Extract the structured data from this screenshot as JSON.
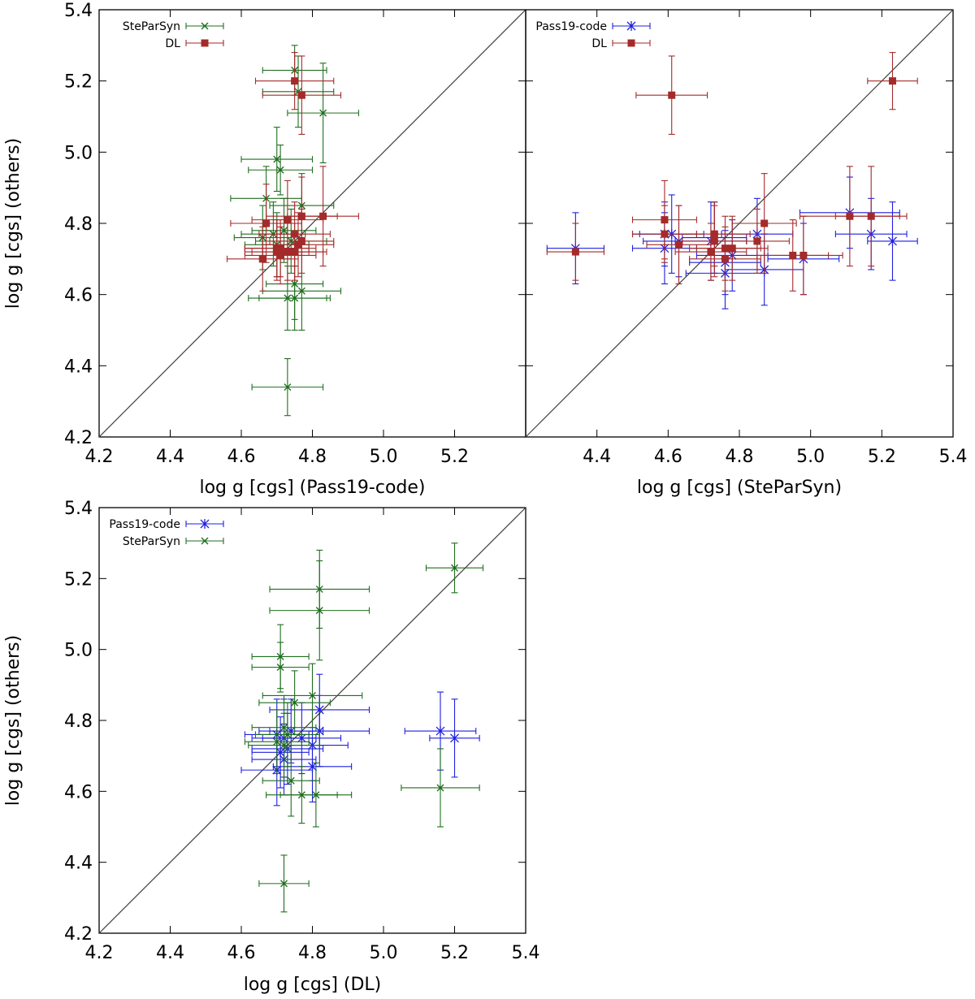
{
  "colors": {
    "pass19": "#1f1fe0",
    "steparsyn": "#1e6e1e",
    "dl": "#a52a2a",
    "axis": "#000000",
    "identity": "#404040"
  },
  "chart_data": [
    {
      "type": "scatter",
      "panel": "top-left",
      "xlabel": "log g [cgs] (Pass19-code)",
      "ylabel": "log g [cgs] (others)",
      "xlim": [
        4.2,
        5.4
      ],
      "ylim": [
        4.2,
        5.4
      ],
      "xticks": [
        4.2,
        4.4,
        4.6,
        4.8,
        5.0,
        5.2
      ],
      "yticks": [
        4.2,
        4.4,
        4.6,
        4.8,
        5.0,
        5.2,
        5.4
      ],
      "xtick_labels": [
        "4.2",
        "4.4",
        "4.6",
        "4.8",
        "5.0",
        "5.2"
      ],
      "ytick_labels": [
        "4.2",
        "4.4",
        "4.6",
        "4.8",
        "5.0",
        "5.2",
        "5.4"
      ],
      "identity_line": true,
      "legend_position": "top-left",
      "series": [
        {
          "name": "SteParSyn",
          "marker": "x",
          "color": "#1e6e1e",
          "points": [
            {
              "x": 4.75,
              "y": 5.23,
              "xerr": 0.09,
              "yerr": 0.07
            },
            {
              "x": 4.76,
              "y": 5.17,
              "xerr": 0.1,
              "yerr": 0.1
            },
            {
              "x": 4.83,
              "y": 5.11,
              "xerr": 0.1,
              "yerr": 0.14
            },
            {
              "x": 4.7,
              "y": 4.98,
              "xerr": 0.1,
              "yerr": 0.09
            },
            {
              "x": 4.71,
              "y": 4.95,
              "xerr": 0.09,
              "yerr": 0.07
            },
            {
              "x": 4.67,
              "y": 4.87,
              "xerr": 0.1,
              "yerr": 0.09
            },
            {
              "x": 4.77,
              "y": 4.85,
              "xerr": 0.09,
              "yerr": 0.09
            },
            {
              "x": 4.69,
              "y": 4.77,
              "xerr": 0.09,
              "yerr": 0.09
            },
            {
              "x": 4.72,
              "y": 4.78,
              "xerr": 0.09,
              "yerr": 0.09
            },
            {
              "x": 4.66,
              "y": 4.76,
              "xerr": 0.08,
              "yerr": 0.09
            },
            {
              "x": 4.74,
              "y": 4.75,
              "xerr": 0.1,
              "yerr": 0.09
            },
            {
              "x": 4.7,
              "y": 4.74,
              "xerr": 0.09,
              "yerr": 0.09
            },
            {
              "x": 4.75,
              "y": 4.63,
              "xerr": 0.08,
              "yerr": 0.1
            },
            {
              "x": 4.77,
              "y": 4.61,
              "xerr": 0.11,
              "yerr": 0.11
            },
            {
              "x": 4.73,
              "y": 4.59,
              "xerr": 0.11,
              "yerr": 0.09
            },
            {
              "x": 4.75,
              "y": 4.59,
              "xerr": 0.1,
              "yerr": 0.09
            },
            {
              "x": 4.73,
              "y": 4.34,
              "xerr": 0.1,
              "yerr": 0.08
            }
          ]
        },
        {
          "name": "DL",
          "marker": "square",
          "color": "#a52a2a",
          "points": [
            {
              "x": 4.75,
              "y": 5.2,
              "xerr": 0.11,
              "yerr": 0.08
            },
            {
              "x": 4.77,
              "y": 5.16,
              "xerr": 0.11,
              "yerr": 0.11
            },
            {
              "x": 4.83,
              "y": 4.82,
              "xerr": 0.1,
              "yerr": 0.14
            },
            {
              "x": 4.77,
              "y": 4.82,
              "xerr": 0.1,
              "yerr": 0.11
            },
            {
              "x": 4.73,
              "y": 4.81,
              "xerr": 0.1,
              "yerr": 0.11
            },
            {
              "x": 4.67,
              "y": 4.8,
              "xerr": 0.1,
              "yerr": 0.11
            },
            {
              "x": 4.75,
              "y": 4.77,
              "xerr": 0.1,
              "yerr": 0.09
            },
            {
              "x": 4.77,
              "y": 4.75,
              "xerr": 0.09,
              "yerr": 0.09
            },
            {
              "x": 4.76,
              "y": 4.74,
              "xerr": 0.1,
              "yerr": 0.09
            },
            {
              "x": 4.7,
              "y": 4.73,
              "xerr": 0.09,
              "yerr": 0.08
            },
            {
              "x": 4.71,
              "y": 4.73,
              "xerr": 0.1,
              "yerr": 0.08
            },
            {
              "x": 4.73,
              "y": 4.72,
              "xerr": 0.1,
              "yerr": 0.08
            },
            {
              "x": 4.75,
              "y": 4.72,
              "xerr": 0.09,
              "yerr": 0.08
            },
            {
              "x": 4.7,
              "y": 4.72,
              "xerr": 0.09,
              "yerr": 0.08
            },
            {
              "x": 4.71,
              "y": 4.71,
              "xerr": 0.1,
              "yerr": 0.08
            },
            {
              "x": 4.66,
              "y": 4.7,
              "xerr": 0.1,
              "yerr": 0.09
            }
          ]
        }
      ]
    },
    {
      "type": "scatter",
      "panel": "top-right",
      "xlabel": "log g [cgs] (SteParSyn)",
      "ylabel": "",
      "xlim": [
        4.2,
        5.4
      ],
      "ylim": [
        4.2,
        5.4
      ],
      "xticks": [
        4.4,
        4.6,
        4.8,
        5.0,
        5.2,
        5.4
      ],
      "yticks": [
        4.2,
        4.4,
        4.6,
        4.8,
        5.0,
        5.2,
        5.4
      ],
      "xtick_labels": [
        "4.4",
        "4.6",
        "4.8",
        "5.0",
        "5.2",
        "5.4"
      ],
      "ytick_labels": [],
      "identity_line": true,
      "legend_position": "top-left",
      "series": [
        {
          "name": "Pass19-code",
          "marker": "asterisk",
          "color": "#1f1fe0",
          "points": [
            {
              "x": 4.34,
              "y": 4.73,
              "xerr": 0.08,
              "yerr": 0.1
            },
            {
              "x": 4.59,
              "y": 4.77,
              "xerr": 0.09,
              "yerr": 0.09
            },
            {
              "x": 4.61,
              "y": 4.77,
              "xerr": 0.09,
              "yerr": 0.11
            },
            {
              "x": 4.59,
              "y": 4.73,
              "xerr": 0.09,
              "yerr": 0.1
            },
            {
              "x": 4.63,
              "y": 4.75,
              "xerr": 0.1,
              "yerr": 0.1
            },
            {
              "x": 4.73,
              "y": 4.76,
              "xerr": 0.09,
              "yerr": 0.1
            },
            {
              "x": 4.72,
              "y": 4.75,
              "xerr": 0.1,
              "yerr": 0.11
            },
            {
              "x": 4.76,
              "y": 4.69,
              "xerr": 0.1,
              "yerr": 0.09
            },
            {
              "x": 4.78,
              "y": 4.71,
              "xerr": 0.1,
              "yerr": 0.1
            },
            {
              "x": 4.76,
              "y": 4.66,
              "xerr": 0.11,
              "yerr": 0.1
            },
            {
              "x": 4.85,
              "y": 4.77,
              "xerr": 0.1,
              "yerr": 0.1
            },
            {
              "x": 4.87,
              "y": 4.67,
              "xerr": 0.11,
              "yerr": 0.1
            },
            {
              "x": 4.98,
              "y": 4.7,
              "xerr": 0.1,
              "yerr": 0.1
            },
            {
              "x": 5.11,
              "y": 4.83,
              "xerr": 0.14,
              "yerr": 0.1
            },
            {
              "x": 5.17,
              "y": 4.77,
              "xerr": 0.1,
              "yerr": 0.1
            },
            {
              "x": 5.23,
              "y": 4.75,
              "xerr": 0.07,
              "yerr": 0.11
            }
          ]
        },
        {
          "name": "DL",
          "marker": "square",
          "color": "#a52a2a",
          "points": [
            {
              "x": 4.34,
              "y": 4.72,
              "xerr": 0.08,
              "yerr": 0.08
            },
            {
              "x": 4.59,
              "y": 4.81,
              "xerr": 0.09,
              "yerr": 0.11
            },
            {
              "x": 4.59,
              "y": 4.77,
              "xerr": 0.09,
              "yerr": 0.08
            },
            {
              "x": 4.61,
              "y": 5.16,
              "xerr": 0.1,
              "yerr": 0.11
            },
            {
              "x": 4.63,
              "y": 4.74,
              "xerr": 0.09,
              "yerr": 0.11
            },
            {
              "x": 4.72,
              "y": 4.72,
              "xerr": 0.1,
              "yerr": 0.08
            },
            {
              "x": 4.73,
              "y": 4.77,
              "xerr": 0.1,
              "yerr": 0.09
            },
            {
              "x": 4.73,
              "y": 4.75,
              "xerr": 0.09,
              "yerr": 0.1
            },
            {
              "x": 4.76,
              "y": 4.7,
              "xerr": 0.1,
              "yerr": 0.09
            },
            {
              "x": 4.76,
              "y": 4.73,
              "xerr": 0.1,
              "yerr": 0.09
            },
            {
              "x": 4.78,
              "y": 4.73,
              "xerr": 0.1,
              "yerr": 0.09
            },
            {
              "x": 4.85,
              "y": 4.75,
              "xerr": 0.09,
              "yerr": 0.09
            },
            {
              "x": 4.87,
              "y": 4.8,
              "xerr": 0.09,
              "yerr": 0.14
            },
            {
              "x": 4.95,
              "y": 4.71,
              "xerr": 0.1,
              "yerr": 0.1
            },
            {
              "x": 4.98,
              "y": 4.71,
              "xerr": 0.11,
              "yerr": 0.11
            },
            {
              "x": 5.11,
              "y": 4.82,
              "xerr": 0.14,
              "yerr": 0.14
            },
            {
              "x": 5.17,
              "y": 4.82,
              "xerr": 0.1,
              "yerr": 0.14
            },
            {
              "x": 5.23,
              "y": 5.2,
              "xerr": 0.07,
              "yerr": 0.08
            }
          ]
        }
      ]
    },
    {
      "type": "scatter",
      "panel": "bottom-left",
      "xlabel": "log g [cgs] (DL)",
      "ylabel": "log g [cgs] (others)",
      "xlim": [
        4.2,
        5.4
      ],
      "ylim": [
        4.2,
        5.4
      ],
      "xticks": [
        4.2,
        4.4,
        4.6,
        4.8,
        5.0,
        5.2,
        5.4
      ],
      "yticks": [
        4.2,
        4.4,
        4.6,
        4.8,
        5.0,
        5.2,
        5.4
      ],
      "xtick_labels": [
        "4.2",
        "4.4",
        "4.6",
        "4.8",
        "5.0",
        "5.2",
        "5.4"
      ],
      "ytick_labels": [
        "4.2",
        "4.4",
        "4.6",
        "4.8",
        "5.0",
        "5.2",
        "5.4"
      ],
      "identity_line": true,
      "legend_position": "top-left",
      "series": [
        {
          "name": "Pass19-code",
          "marker": "asterisk",
          "color": "#1f1fe0",
          "points": [
            {
              "x": 4.82,
              "y": 4.83,
              "xerr": 0.14,
              "yerr": 0.1
            },
            {
              "x": 4.82,
              "y": 4.77,
              "xerr": 0.14,
              "yerr": 0.1
            },
            {
              "x": 4.74,
              "y": 4.77,
              "xerr": 0.09,
              "yerr": 0.09
            },
            {
              "x": 4.7,
              "y": 4.76,
              "xerr": 0.09,
              "yerr": 0.1
            },
            {
              "x": 4.77,
              "y": 4.75,
              "xerr": 0.11,
              "yerr": 0.1
            },
            {
              "x": 4.72,
              "y": 4.75,
              "xerr": 0.09,
              "yerr": 0.11
            },
            {
              "x": 4.8,
              "y": 4.73,
              "xerr": 0.1,
              "yerr": 0.1
            },
            {
              "x": 4.73,
              "y": 4.72,
              "xerr": 0.1,
              "yerr": 0.1
            },
            {
              "x": 4.71,
              "y": 4.71,
              "xerr": 0.08,
              "yerr": 0.1
            },
            {
              "x": 4.72,
              "y": 4.69,
              "xerr": 0.09,
              "yerr": 0.1
            },
            {
              "x": 4.8,
              "y": 4.67,
              "xerr": 0.11,
              "yerr": 0.1
            },
            {
              "x": 4.7,
              "y": 4.66,
              "xerr": 0.1,
              "yerr": 0.1
            },
            {
              "x": 5.16,
              "y": 4.77,
              "xerr": 0.1,
              "yerr": 0.11
            },
            {
              "x": 5.2,
              "y": 4.75,
              "xerr": 0.07,
              "yerr": 0.11
            }
          ]
        },
        {
          "name": "SteParSyn",
          "marker": "x",
          "color": "#1e6e1e",
          "points": [
            {
              "x": 5.2,
              "y": 5.23,
              "xerr": 0.08,
              "yerr": 0.07
            },
            {
              "x": 4.82,
              "y": 5.17,
              "xerr": 0.14,
              "yerr": 0.11
            },
            {
              "x": 4.82,
              "y": 5.11,
              "xerr": 0.14,
              "yerr": 0.14
            },
            {
              "x": 4.71,
              "y": 4.98,
              "xerr": 0.08,
              "yerr": 0.09
            },
            {
              "x": 4.71,
              "y": 4.95,
              "xerr": 0.08,
              "yerr": 0.07
            },
            {
              "x": 4.8,
              "y": 4.87,
              "xerr": 0.14,
              "yerr": 0.09
            },
            {
              "x": 4.75,
              "y": 4.85,
              "xerr": 0.1,
              "yerr": 0.09
            },
            {
              "x": 4.72,
              "y": 4.78,
              "xerr": 0.09,
              "yerr": 0.09
            },
            {
              "x": 4.73,
              "y": 4.76,
              "xerr": 0.09,
              "yerr": 0.09
            },
            {
              "x": 4.7,
              "y": 4.74,
              "xerr": 0.09,
              "yerr": 0.09
            },
            {
              "x": 4.72,
              "y": 4.73,
              "xerr": 0.1,
              "yerr": 0.09
            },
            {
              "x": 4.74,
              "y": 4.63,
              "xerr": 0.08,
              "yerr": 0.1
            },
            {
              "x": 4.77,
              "y": 4.59,
              "xerr": 0.1,
              "yerr": 0.08
            },
            {
              "x": 4.81,
              "y": 4.59,
              "xerr": 0.1,
              "yerr": 0.09
            },
            {
              "x": 5.16,
              "y": 4.61,
              "xerr": 0.11,
              "yerr": 0.11
            },
            {
              "x": 4.72,
              "y": 4.34,
              "xerr": 0.07,
              "yerr": 0.08
            }
          ]
        }
      ]
    }
  ]
}
